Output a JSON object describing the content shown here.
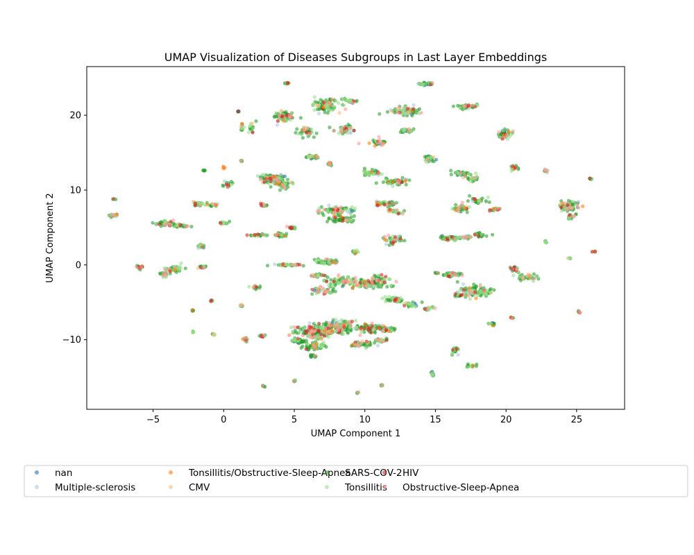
{
  "chart_data": {
    "type": "scatter",
    "title": "UMAP Visualization of Diseases Subgroups in Last Layer Embeddings",
    "xlabel": "UMAP Component 1",
    "ylabel": "UMAP Component 2",
    "xlim": [
      -9.7,
      28.4
    ],
    "ylim": [
      -19.3,
      26.5
    ],
    "xticks": [
      -5,
      0,
      5,
      10,
      15,
      20,
      25
    ],
    "yticks": [
      -10,
      0,
      10,
      20
    ],
    "grid": false,
    "legend_position": "bottom",
    "legend_columns": 5,
    "series": [
      {
        "name": "nan",
        "color": "#1f77b4",
        "alpha": 0.6
      },
      {
        "name": "Multiple-sclerosis",
        "color": "#aec7e8",
        "alpha": 0.6
      },
      {
        "name": "Tonsillitis/Obstructive-Sleep-Apnea",
        "color": "#ff7f0e",
        "alpha": 0.6
      },
      {
        "name": "CMV",
        "color": "#ffbb78",
        "alpha": 0.6
      },
      {
        "name": "SARS-COV-2",
        "color": "#2ca02c",
        "alpha": 0.6
      },
      {
        "name": "Tonsillitis",
        "color": "#98df8a",
        "alpha": 0.6
      },
      {
        "name": "HIV",
        "color": "#d62728",
        "alpha": 0.6
      },
      {
        "name": "Obstructive-Sleep-Apnea",
        "color": "#ff9896",
        "alpha": 0.6
      }
    ],
    "clusters": [
      [
        4.5,
        24.3,
        0.15,
        0.1,
        4
      ],
      [
        14.3,
        24.2,
        0.6,
        0.15,
        10
      ],
      [
        7.2,
        21.3,
        0.9,
        0.8,
        30
      ],
      [
        9.0,
        21.9,
        0.3,
        0.3,
        8
      ],
      [
        12.9,
        20.6,
        1.0,
        0.5,
        22
      ],
      [
        17.1,
        21.2,
        0.7,
        0.3,
        14
      ],
      [
        4.2,
        19.8,
        0.7,
        0.7,
        22
      ],
      [
        5.8,
        17.8,
        0.6,
        0.5,
        12
      ],
      [
        8.6,
        18.1,
        0.7,
        0.5,
        14
      ],
      [
        10.9,
        16.4,
        0.6,
        0.4,
        12
      ],
      [
        19.8,
        17.5,
        0.5,
        0.6,
        14
      ],
      [
        13.0,
        17.9,
        0.5,
        0.3,
        8
      ],
      [
        1.0,
        20.5,
        0.1,
        0.1,
        2
      ],
      [
        1.3,
        18.5,
        0.1,
        0.6,
        4
      ],
      [
        2.0,
        18.3,
        0.3,
        0.9,
        5
      ],
      [
        6.2,
        14.5,
        0.4,
        0.2,
        8
      ],
      [
        14.6,
        14.3,
        0.4,
        0.3,
        10
      ],
      [
        7.5,
        13.5,
        0.2,
        0.2,
        4
      ],
      [
        3.4,
        11.5,
        0.8,
        0.6,
        30
      ],
      [
        4.3,
        10.8,
        0.5,
        0.6,
        14
      ],
      [
        10.5,
        12.3,
        0.6,
        0.3,
        14
      ],
      [
        12.2,
        11.1,
        0.8,
        0.4,
        16
      ],
      [
        16.9,
        12.2,
        0.7,
        0.3,
        12
      ],
      [
        17.7,
        11.5,
        0.4,
        0.3,
        8
      ],
      [
        20.6,
        13.0,
        0.3,
        0.3,
        8
      ],
      [
        22.8,
        12.6,
        0.2,
        0.2,
        4
      ],
      [
        0.0,
        13.0,
        0.1,
        0.1,
        2
      ],
      [
        -1.4,
        12.6,
        0.1,
        0.1,
        2
      ],
      [
        1.3,
        13.9,
        0.1,
        0.1,
        2
      ],
      [
        0.3,
        10.7,
        0.4,
        0.4,
        6
      ],
      [
        8.1,
        7.3,
        1.0,
        0.5,
        30
      ],
      [
        8.4,
        6.1,
        0.8,
        0.4,
        16
      ],
      [
        11.4,
        8.2,
        0.8,
        0.3,
        12
      ],
      [
        12.3,
        7.1,
        0.6,
        0.3,
        8
      ],
      [
        16.7,
        7.5,
        0.6,
        0.4,
        12
      ],
      [
        17.9,
        8.6,
        0.6,
        0.4,
        10
      ],
      [
        19.2,
        7.4,
        0.3,
        0.3,
        6
      ],
      [
        24.4,
        7.8,
        0.6,
        0.7,
        24
      ],
      [
        24.7,
        6.5,
        0.3,
        0.3,
        6
      ],
      [
        -4.0,
        5.5,
        0.8,
        0.3,
        18
      ],
      [
        -3.0,
        5.2,
        0.5,
        0.2,
        8
      ],
      [
        -1.7,
        8.1,
        0.4,
        0.3,
        10
      ],
      [
        -0.7,
        8.0,
        0.3,
        0.2,
        6
      ],
      [
        -7.8,
        6.6,
        0.3,
        0.2,
        6
      ],
      [
        -7.8,
        8.8,
        0.1,
        0.1,
        2
      ],
      [
        0.0,
        5.6,
        0.3,
        0.2,
        6
      ],
      [
        2.8,
        8.0,
        0.3,
        0.2,
        6
      ],
      [
        4.8,
        5.0,
        0.3,
        0.2,
        6
      ],
      [
        12.0,
        3.4,
        0.6,
        0.5,
        14
      ],
      [
        16.0,
        3.6,
        0.6,
        0.3,
        12
      ],
      [
        17.1,
        3.7,
        0.4,
        0.2,
        8
      ],
      [
        18.2,
        3.9,
        0.4,
        0.3,
        8
      ],
      [
        2.4,
        4.0,
        0.6,
        0.1,
        8
      ],
      [
        3.9,
        4.0,
        0.4,
        0.3,
        10
      ],
      [
        -1.6,
        2.5,
        0.2,
        0.3,
        6
      ],
      [
        -5.9,
        -0.3,
        0.2,
        0.2,
        6
      ],
      [
        -3.4,
        -0.5,
        0.6,
        0.4,
        16
      ],
      [
        -1.5,
        -0.3,
        0.3,
        0.2,
        6
      ],
      [
        -4.2,
        -1.3,
        0.3,
        0.3,
        6
      ],
      [
        4.6,
        0.0,
        0.8,
        0.1,
        14
      ],
      [
        7.3,
        0.4,
        0.8,
        0.3,
        14
      ],
      [
        6.6,
        -1.4,
        0.6,
        0.2,
        8
      ],
      [
        9.3,
        1.7,
        0.2,
        0.3,
        4
      ],
      [
        16.2,
        -1.3,
        0.6,
        0.3,
        12
      ],
      [
        20.7,
        -0.5,
        0.3,
        0.3,
        8
      ],
      [
        21.5,
        -1.6,
        0.6,
        0.4,
        14
      ],
      [
        24.5,
        0.9,
        0.1,
        0.1,
        2
      ],
      [
        26.2,
        1.8,
        0.2,
        0.1,
        2
      ],
      [
        8.4,
        -2.2,
        1.0,
        0.6,
        22
      ],
      [
        10.0,
        -2.5,
        0.9,
        0.6,
        20
      ],
      [
        11.2,
        -2.2,
        0.8,
        0.7,
        18
      ],
      [
        7.0,
        -3.5,
        0.8,
        0.4,
        14
      ],
      [
        12.0,
        -4.6,
        0.7,
        0.4,
        12
      ],
      [
        13.3,
        -5.3,
        0.6,
        0.3,
        10
      ],
      [
        14.5,
        -5.8,
        0.4,
        0.2,
        6
      ],
      [
        17.6,
        -3.5,
        0.8,
        0.7,
        24
      ],
      [
        18.5,
        -3.6,
        0.5,
        0.4,
        10
      ],
      [
        16.7,
        -4.0,
        0.4,
        0.3,
        6
      ],
      [
        2.2,
        -3.0,
        0.3,
        0.2,
        6
      ],
      [
        1.3,
        -5.4,
        0.1,
        0.1,
        2
      ],
      [
        6.6,
        -9.0,
        1.3,
        0.8,
        60
      ],
      [
        8.1,
        -8.3,
        1.2,
        0.7,
        50
      ],
      [
        10.2,
        -8.4,
        0.8,
        0.5,
        22
      ],
      [
        11.5,
        -8.6,
        0.6,
        0.4,
        12
      ],
      [
        6.4,
        -10.9,
        0.7,
        0.5,
        16
      ],
      [
        9.8,
        -10.6,
        0.7,
        0.4,
        14
      ],
      [
        11.2,
        -10.1,
        0.4,
        0.3,
        8
      ],
      [
        5.3,
        -10.2,
        0.5,
        0.4,
        10
      ],
      [
        2.7,
        -9.5,
        0.2,
        0.2,
        4
      ],
      [
        1.5,
        -9.9,
        0.2,
        0.3,
        4
      ],
      [
        6.3,
        -12.2,
        0.2,
        0.2,
        4
      ],
      [
        16.4,
        -11.5,
        0.3,
        0.5,
        6
      ],
      [
        17.5,
        -13.5,
        0.3,
        0.3,
        4
      ],
      [
        14.8,
        -14.6,
        0.1,
        0.3,
        4
      ],
      [
        19.0,
        -7.9,
        0.2,
        0.2,
        4
      ],
      [
        22.8,
        3.1,
        0.1,
        0.1,
        2
      ],
      [
        15.1,
        -1.1,
        0.1,
        0.1,
        2
      ],
      [
        20.4,
        -7.1,
        0.1,
        0.1,
        2
      ],
      [
        25.2,
        -6.3,
        0.1,
        0.1,
        2
      ],
      [
        26.0,
        11.5,
        0.1,
        0.1,
        2
      ],
      [
        2.8,
        -16.2,
        0.1,
        0.1,
        2
      ],
      [
        5.0,
        -15.5,
        0.1,
        0.1,
        2
      ],
      [
        9.5,
        -17.1,
        0.1,
        0.1,
        2
      ],
      [
        11.2,
        -16.1,
        0.1,
        0.1,
        2
      ],
      [
        -2.2,
        -6.1,
        0.1,
        0.1,
        2
      ],
      [
        -2.2,
        -9.0,
        0.1,
        0.1,
        2
      ],
      [
        -0.7,
        -9.3,
        0.1,
        0.1,
        2
      ],
      [
        -0.9,
        -4.8,
        0.1,
        0.1,
        2
      ]
    ]
  }
}
